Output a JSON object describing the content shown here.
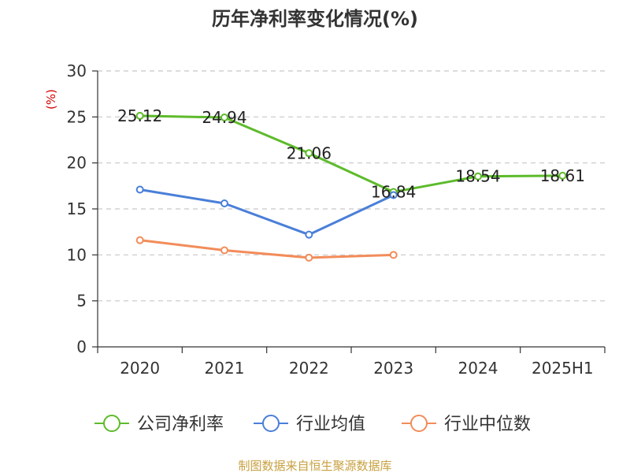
{
  "chart_data": {
    "type": "line",
    "title": "历年净利率变化情况(%)",
    "ylabel": "(%)",
    "categories": [
      "2020",
      "2021",
      "2022",
      "2023",
      "2024",
      "2025H1"
    ],
    "ylim": [
      0,
      30
    ],
    "yticks": [
      0,
      5,
      10,
      15,
      20,
      25,
      30
    ],
    "grid": true,
    "legend_position": "bottom",
    "series": [
      {
        "name": "公司净利率",
        "color": "#5dbb2b",
        "values": [
          25.12,
          24.94,
          21.06,
          16.84,
          18.54,
          18.61
        ],
        "labels": [
          "25.12",
          "24.94",
          "21.06",
          "16.84",
          "18.54",
          "18.61"
        ]
      },
      {
        "name": "行业均值",
        "color": "#4a7fd8",
        "values": [
          17.1,
          15.6,
          12.2,
          16.5,
          null,
          null
        ]
      },
      {
        "name": "行业中位数",
        "color": "#f28c5a",
        "values": [
          11.6,
          10.5,
          9.7,
          10.0,
          null,
          null
        ]
      }
    ],
    "source": "制图数据来自恒生聚源数据库"
  }
}
